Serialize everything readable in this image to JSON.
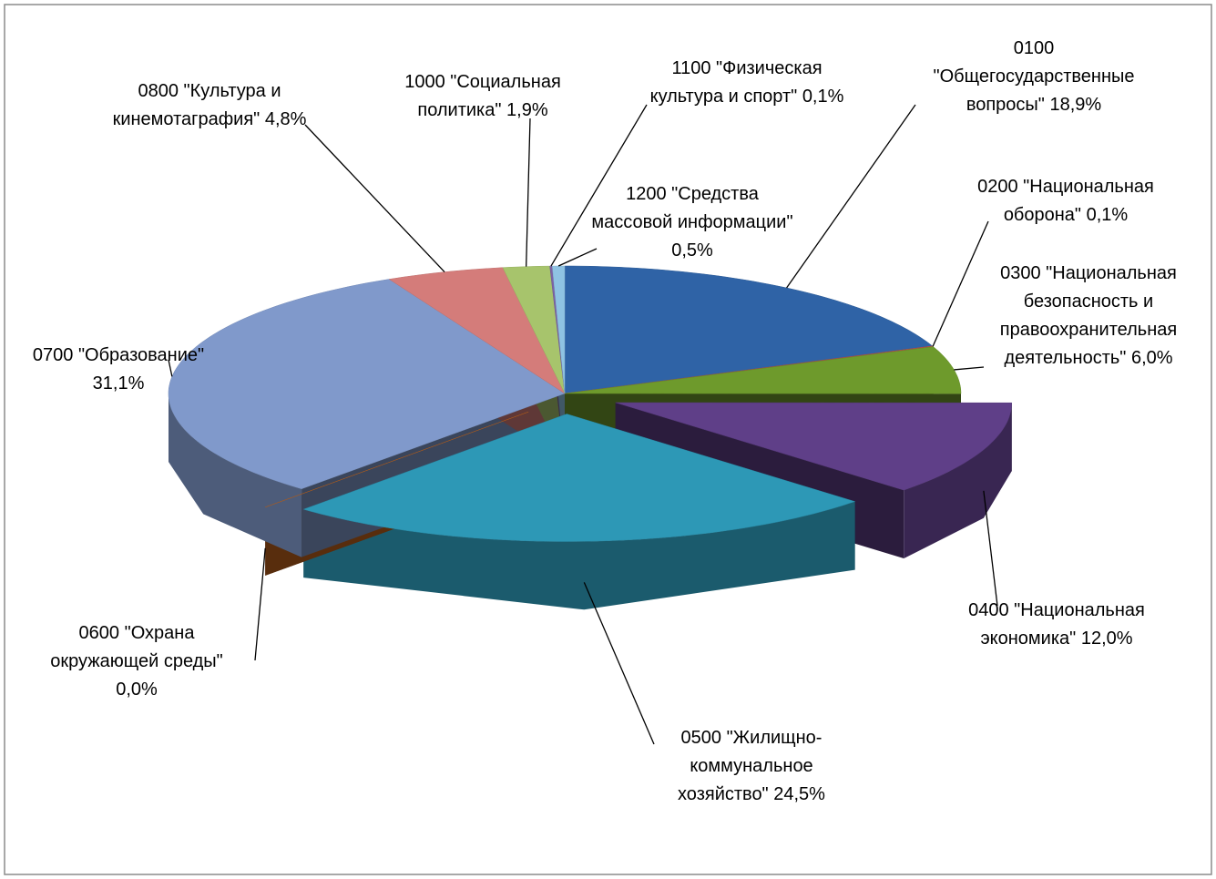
{
  "chart_data": {
    "type": "pie3d",
    "categories": [
      "0100 \"Общегосударственные вопросы\"",
      "0200 \"Национальная оборона\"",
      "0300 \"Национальная безопасность и правоохранительная деятельность\"",
      "0400 \"Национальная экономика\"",
      "0500 \"Жилищно-коммунальное хозяйство\"",
      "0600 \"Охрана окружающей среды\"",
      "0700 \"Образование\"",
      "0800 \"Культура и кинемотаграфия\"",
      "1000 \"Социальная политика\"",
      "1100 \"Физическая культура и спорт\"",
      "1200 \"Средства массовой информации\""
    ],
    "values": [
      18.9,
      0.1,
      6.0,
      12.0,
      24.5,
      0.0,
      31.1,
      4.8,
      1.9,
      0.1,
      0.5
    ],
    "value_labels": [
      "18,9%",
      "0,1%",
      "6,0%",
      "12,0%",
      "24,5%",
      "0,0%",
      "31,1%",
      "4,8%",
      "1,9%",
      "0,1%",
      "0,5%"
    ],
    "colors": [
      "#2f63a6",
      "#c0504d",
      "#6e9a2c",
      "#5f3f88",
      "#2d98b6",
      "#c4651c",
      "#8099cb",
      "#d47c7a",
      "#a7c46c",
      "#7b63a5",
      "#8fc3e3"
    ]
  }
}
